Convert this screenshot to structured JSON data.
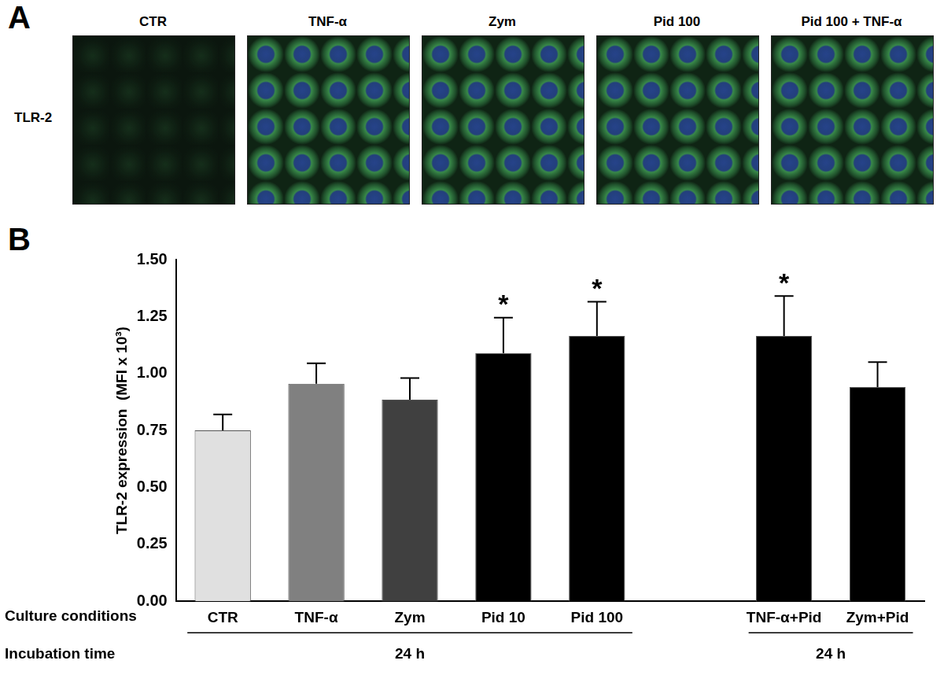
{
  "panel_a": {
    "label": "A",
    "row_label": "TLR-2",
    "images": [
      "CTR",
      "TNF-α",
      "Zym",
      "Pid 100",
      "Pid 100 + TNF-α"
    ]
  },
  "chart_data": {
    "type": "bar",
    "panel_label": "B",
    "y_label": "TLR-2 expression  (MFI x 10³)",
    "x_label": "Culture conditions",
    "group_axis_label": "Incubation time",
    "groups": [
      {
        "label": "24 h",
        "from": "CTR",
        "to": "Pid 100"
      },
      {
        "label": "24 h",
        "from": "TNF-α+Pid",
        "to": "Zym+Pid"
      }
    ],
    "categories": [
      "CTR",
      "TNF-α",
      "Zym",
      "Pid 10",
      "Pid 100",
      null,
      "TNF-α+Pid",
      "Zym+Pid"
    ],
    "values": [
      0.75,
      0.955,
      0.885,
      1.09,
      1.165,
      null,
      1.165,
      0.94
    ],
    "errors": [
      0.07,
      0.09,
      0.095,
      0.155,
      0.15,
      null,
      0.175,
      0.11
    ],
    "significant": [
      false,
      false,
      false,
      true,
      true,
      null,
      true,
      false
    ],
    "significance_mark": "*",
    "colors": [
      "#e0e0e0",
      "#808080",
      "#404040",
      "#000000",
      "#000000",
      null,
      "#000000",
      "#000000"
    ],
    "ylim": [
      0,
      1.5
    ],
    "yticks": [
      {
        "value": 0,
        "label": "0.00"
      },
      {
        "value": 0.25,
        "label": "0.25"
      },
      {
        "value": 0.5,
        "label": "0.50"
      },
      {
        "value": 0.75,
        "label": "0.75"
      },
      {
        "value": 1,
        "label": "1.00"
      },
      {
        "value": 1.25,
        "label": "1.25"
      },
      {
        "value": 1.5,
        "label": "1.50"
      }
    ],
    "grid": false
  }
}
